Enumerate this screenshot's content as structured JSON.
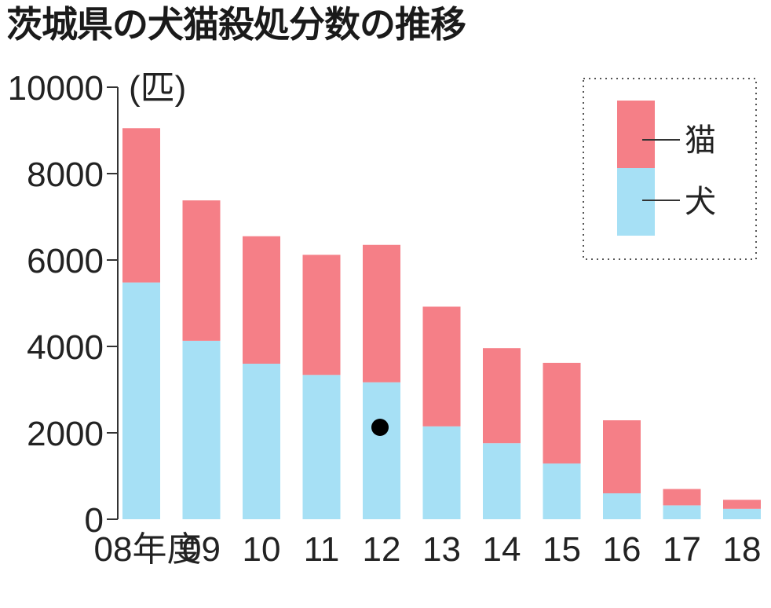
{
  "chart_data": {
    "type": "bar",
    "stacked": true,
    "title": "茨城県の犬猫殺処分数の推移",
    "unit_label": "(匹)",
    "categories": [
      "08年度",
      "09",
      "10",
      "11",
      "12",
      "13",
      "14",
      "15",
      "16",
      "17",
      "18"
    ],
    "series": [
      {
        "name": "犬",
        "color": "#a6e0f5",
        "values": [
          5480,
          4130,
          3600,
          3340,
          3170,
          2150,
          1760,
          1290,
          600,
          320,
          240
        ]
      },
      {
        "name": "猫",
        "color": "#f57f87",
        "values": [
          3570,
          3250,
          2950,
          2780,
          3180,
          2770,
          2200,
          2330,
          1690,
          380,
          210
        ]
      }
    ],
    "ylim": [
      0,
      10000
    ],
    "yticks": [
      "0",
      "2000",
      "4000",
      "6000",
      "8000",
      "10000"
    ],
    "grid": false,
    "legend_position": "top-right",
    "legend_style": "dotted-box"
  }
}
